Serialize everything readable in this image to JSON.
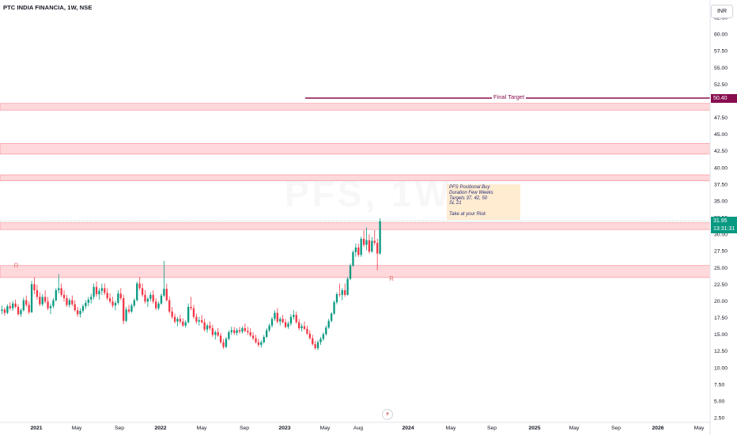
{
  "header": {
    "symbol_title": "PTC INDIA FINANCIA, 1W, NSE",
    "currency": "INR"
  },
  "watermark": "PFS, 1W",
  "note": {
    "lines": [
      "PFS Positional Buy",
      "Duration Few Weeks",
      "Targets 37, 42, 50",
      "SL 21",
      "",
      "Take at your Risk"
    ]
  },
  "final_target": {
    "label": "Final Target",
    "price_label": "50.40",
    "value": 50.4,
    "color": "#880e4f"
  },
  "last_price": {
    "price_label": "31.95",
    "countdown": "13:31:31",
    "value": 31.95,
    "color": "#089981"
  },
  "flash_icon": "lightning-icon",
  "chart_data": {
    "type": "candlestick",
    "interval": "1W",
    "y_axis_ticks": [
      "62.50",
      "60.00",
      "57.50",
      "55.00",
      "52.50",
      "50.00",
      "47.50",
      "45.00",
      "42.50",
      "40.00",
      "37.50",
      "35.00",
      "32.50",
      "30.00",
      "27.50",
      "25.00",
      "22.50",
      "20.00",
      "17.50",
      "15.00",
      "12.50",
      "10.00",
      "7.50",
      "5.00",
      "2.50"
    ],
    "x_axis_ticks": [
      "2021",
      "May",
      "Sep",
      "2022",
      "May",
      "Sep",
      "2023",
      "May",
      "Aug",
      "2024",
      "May",
      "Sep",
      "2025",
      "May",
      "Sep",
      "2026",
      "May"
    ],
    "ylim": [
      2.5,
      62.5
    ],
    "zones": [
      {
        "from": 48.6,
        "to": 49.6
      },
      {
        "from": 42.0,
        "to": 43.6
      },
      {
        "from": 38.0,
        "to": 38.9
      },
      {
        "from": 30.7,
        "to": 31.7
      },
      {
        "from": 23.5,
        "to": 25.3
      }
    ],
    "annotations": [
      {
        "text": "R",
        "week": 5,
        "value": 25.0
      },
      {
        "text": "R",
        "week": 144,
        "value": 23.0
      }
    ],
    "rising_color": "#089981",
    "falling_color": "#f23645",
    "candles": [
      [
        18.5,
        19.3,
        18.0,
        18.7
      ],
      [
        18.7,
        19.0,
        17.8,
        18.2
      ],
      [
        18.2,
        19.5,
        18.0,
        19.2
      ],
      [
        19.2,
        19.8,
        18.6,
        18.9
      ],
      [
        18.9,
        20.0,
        18.5,
        19.6
      ],
      [
        19.6,
        20.2,
        18.9,
        19.1
      ],
      [
        19.1,
        19.5,
        17.8,
        18.0
      ],
      [
        18.0,
        18.9,
        17.6,
        18.6
      ],
      [
        18.6,
        20.5,
        18.4,
        20.1
      ],
      [
        20.1,
        20.8,
        19.1,
        19.4
      ],
      [
        19.4,
        19.9,
        18.0,
        18.3
      ],
      [
        18.3,
        23.0,
        18.2,
        22.5
      ],
      [
        22.5,
        23.5,
        21.0,
        21.6
      ],
      [
        21.6,
        22.4,
        20.2,
        20.6
      ],
      [
        20.6,
        21.3,
        19.2,
        19.5
      ],
      [
        19.5,
        21.0,
        19.2,
        20.6
      ],
      [
        20.6,
        21.6,
        19.6,
        19.9
      ],
      [
        19.9,
        20.6,
        18.6,
        18.9
      ],
      [
        18.9,
        19.6,
        18.0,
        19.2
      ],
      [
        19.2,
        20.4,
        18.9,
        20.1
      ],
      [
        20.1,
        21.9,
        19.9,
        21.6
      ],
      [
        21.6,
        24.0,
        21.1,
        21.9
      ],
      [
        21.9,
        22.6,
        20.6,
        20.9
      ],
      [
        20.9,
        21.6,
        19.9,
        20.4
      ],
      [
        20.4,
        20.9,
        19.1,
        19.4
      ],
      [
        19.4,
        20.4,
        19.0,
        20.1
      ],
      [
        20.1,
        20.8,
        19.2,
        19.5
      ],
      [
        19.5,
        20.1,
        18.4,
        18.6
      ],
      [
        18.6,
        19.1,
        17.6,
        18.0
      ],
      [
        18.0,
        18.9,
        17.5,
        18.5
      ],
      [
        18.5,
        19.5,
        18.2,
        19.2
      ],
      [
        19.2,
        20.1,
        18.8,
        19.7
      ],
      [
        19.7,
        20.6,
        19.2,
        20.2
      ],
      [
        20.2,
        21.1,
        19.6,
        20.6
      ],
      [
        20.6,
        22.6,
        20.2,
        22.1
      ],
      [
        22.1,
        22.9,
        20.6,
        21.0
      ],
      [
        21.0,
        21.9,
        20.2,
        21.5
      ],
      [
        21.5,
        22.6,
        20.9,
        21.9
      ],
      [
        21.9,
        22.6,
        20.9,
        21.2
      ],
      [
        21.2,
        21.9,
        20.1,
        20.4
      ],
      [
        20.4,
        21.1,
        19.6,
        19.9
      ],
      [
        19.9,
        20.6,
        19.0,
        19.3
      ],
      [
        19.3,
        20.0,
        18.6,
        19.7
      ],
      [
        19.7,
        21.6,
        19.4,
        21.1
      ],
      [
        21.1,
        21.9,
        20.1,
        20.4
      ],
      [
        20.4,
        20.9,
        16.5,
        17.0
      ],
      [
        17.0,
        19.1,
        16.8,
        18.7
      ],
      [
        18.7,
        19.4,
        18.1,
        18.4
      ],
      [
        18.4,
        19.6,
        18.2,
        19.3
      ],
      [
        19.3,
        20.4,
        19.0,
        20.1
      ],
      [
        20.1,
        22.9,
        19.9,
        22.6
      ],
      [
        22.6,
        23.6,
        21.6,
        21.9
      ],
      [
        21.9,
        22.6,
        20.6,
        20.9
      ],
      [
        20.9,
        21.6,
        19.6,
        19.9
      ],
      [
        19.9,
        20.6,
        19.1,
        20.3
      ],
      [
        20.3,
        21.3,
        19.9,
        20.9
      ],
      [
        20.9,
        21.6,
        19.6,
        19.9
      ],
      [
        19.9,
        20.4,
        18.6,
        18.9
      ],
      [
        18.9,
        19.9,
        18.6,
        19.6
      ],
      [
        19.6,
        21.1,
        19.4,
        20.8
      ],
      [
        20.8,
        26.0,
        20.6,
        21.8
      ],
      [
        21.8,
        22.6,
        19.9,
        20.1
      ],
      [
        20.1,
        20.6,
        18.1,
        18.4
      ],
      [
        18.4,
        19.1,
        17.3,
        17.6
      ],
      [
        17.6,
        18.1,
        16.6,
        16.9
      ],
      [
        16.9,
        17.6,
        16.2,
        17.3
      ],
      [
        17.3,
        17.9,
        16.6,
        16.9
      ],
      [
        16.9,
        17.4,
        16.1,
        16.3
      ],
      [
        16.3,
        17.1,
        16.0,
        16.8
      ],
      [
        16.8,
        19.6,
        16.6,
        19.1
      ],
      [
        19.1,
        20.6,
        18.6,
        18.9
      ],
      [
        18.9,
        19.4,
        17.3,
        17.6
      ],
      [
        17.6,
        18.1,
        16.6,
        16.9
      ],
      [
        16.9,
        17.6,
        16.3,
        17.1
      ],
      [
        17.1,
        17.9,
        16.6,
        16.8
      ],
      [
        16.8,
        17.3,
        15.4,
        15.7
      ],
      [
        15.7,
        16.6,
        15.2,
        16.3
      ],
      [
        16.3,
        16.9,
        15.6,
        15.9
      ],
      [
        15.9,
        16.4,
        14.6,
        14.9
      ],
      [
        14.9,
        15.6,
        14.2,
        15.3
      ],
      [
        15.3,
        15.9,
        14.6,
        14.8
      ],
      [
        14.8,
        15.2,
        13.6,
        13.8
      ],
      [
        13.8,
        14.3,
        12.8,
        13.1
      ],
      [
        13.1,
        14.6,
        12.9,
        14.3
      ],
      [
        14.3,
        15.6,
        14.1,
        15.3
      ],
      [
        15.3,
        16.1,
        14.9,
        15.6
      ],
      [
        15.6,
        16.1,
        14.9,
        15.2
      ],
      [
        15.2,
        15.9,
        14.8,
        15.6
      ],
      [
        15.6,
        16.1,
        15.1,
        15.4
      ],
      [
        15.4,
        16.2,
        15.1,
        15.9
      ],
      [
        15.9,
        16.6,
        15.3,
        15.5
      ],
      [
        15.5,
        16.1,
        14.9,
        15.3
      ],
      [
        15.3,
        15.9,
        14.6,
        14.8
      ],
      [
        14.8,
        15.3,
        14.1,
        14.4
      ],
      [
        14.4,
        14.9,
        13.6,
        13.8
      ],
      [
        13.8,
        14.3,
        13.1,
        13.4
      ],
      [
        13.4,
        14.1,
        13.0,
        13.8
      ],
      [
        13.8,
        14.9,
        13.6,
        14.6
      ],
      [
        14.6,
        15.9,
        14.4,
        15.6
      ],
      [
        15.6,
        16.6,
        15.3,
        16.3
      ],
      [
        16.3,
        17.6,
        16.0,
        17.3
      ],
      [
        17.3,
        18.6,
        17.0,
        18.2
      ],
      [
        18.2,
        18.9,
        16.6,
        16.9
      ],
      [
        16.9,
        17.6,
        16.3,
        17.3
      ],
      [
        17.3,
        17.9,
        16.6,
        16.8
      ],
      [
        16.8,
        17.3,
        15.9,
        16.1
      ],
      [
        16.1,
        16.9,
        15.8,
        16.6
      ],
      [
        16.6,
        18.0,
        16.3,
        17.6
      ],
      [
        17.6,
        18.6,
        17.2,
        17.9
      ],
      [
        17.9,
        18.4,
        16.6,
        16.8
      ],
      [
        16.8,
        17.3,
        15.6,
        15.9
      ],
      [
        15.9,
        16.6,
        15.4,
        16.2
      ],
      [
        16.2,
        16.9,
        15.6,
        15.8
      ],
      [
        15.8,
        16.3,
        14.9,
        15.1
      ],
      [
        15.1,
        15.6,
        14.2,
        14.4
      ],
      [
        14.4,
        14.9,
        13.3,
        13.5
      ],
      [
        13.5,
        14.0,
        12.7,
        12.9
      ],
      [
        12.9,
        14.1,
        12.6,
        13.8
      ],
      [
        13.8,
        14.6,
        13.4,
        14.3
      ],
      [
        14.3,
        15.3,
        14.0,
        15.0
      ],
      [
        15.0,
        16.3,
        14.8,
        16.0
      ],
      [
        16.0,
        17.3,
        15.8,
        17.0
      ],
      [
        17.0,
        18.3,
        16.8,
        18.1
      ],
      [
        18.1,
        20.1,
        17.9,
        19.8
      ],
      [
        19.8,
        21.3,
        19.5,
        21.0
      ],
      [
        21.0,
        22.6,
        20.6,
        20.9
      ],
      [
        20.9,
        21.9,
        20.1,
        21.6
      ],
      [
        21.6,
        22.6,
        20.6,
        20.9
      ],
      [
        20.9,
        23.6,
        20.8,
        23.3
      ],
      [
        23.3,
        25.6,
        23.1,
        25.3
      ],
      [
        25.3,
        27.6,
        25.1,
        27.3
      ],
      [
        27.3,
        28.6,
        26.6,
        28.0
      ],
      [
        28.0,
        28.6,
        26.6,
        26.9
      ],
      [
        26.9,
        29.6,
        26.6,
        29.3
      ],
      [
        29.3,
        30.6,
        28.1,
        28.4
      ],
      [
        28.4,
        31.0,
        27.6,
        29.1
      ],
      [
        29.1,
        30.0,
        27.1,
        27.4
      ],
      [
        27.4,
        29.6,
        27.2,
        29.0
      ],
      [
        29.0,
        30.6,
        28.3,
        28.7
      ],
      [
        28.7,
        29.3,
        24.6,
        27.1
      ],
      [
        27.1,
        32.4,
        26.9,
        31.95
      ]
    ]
  }
}
